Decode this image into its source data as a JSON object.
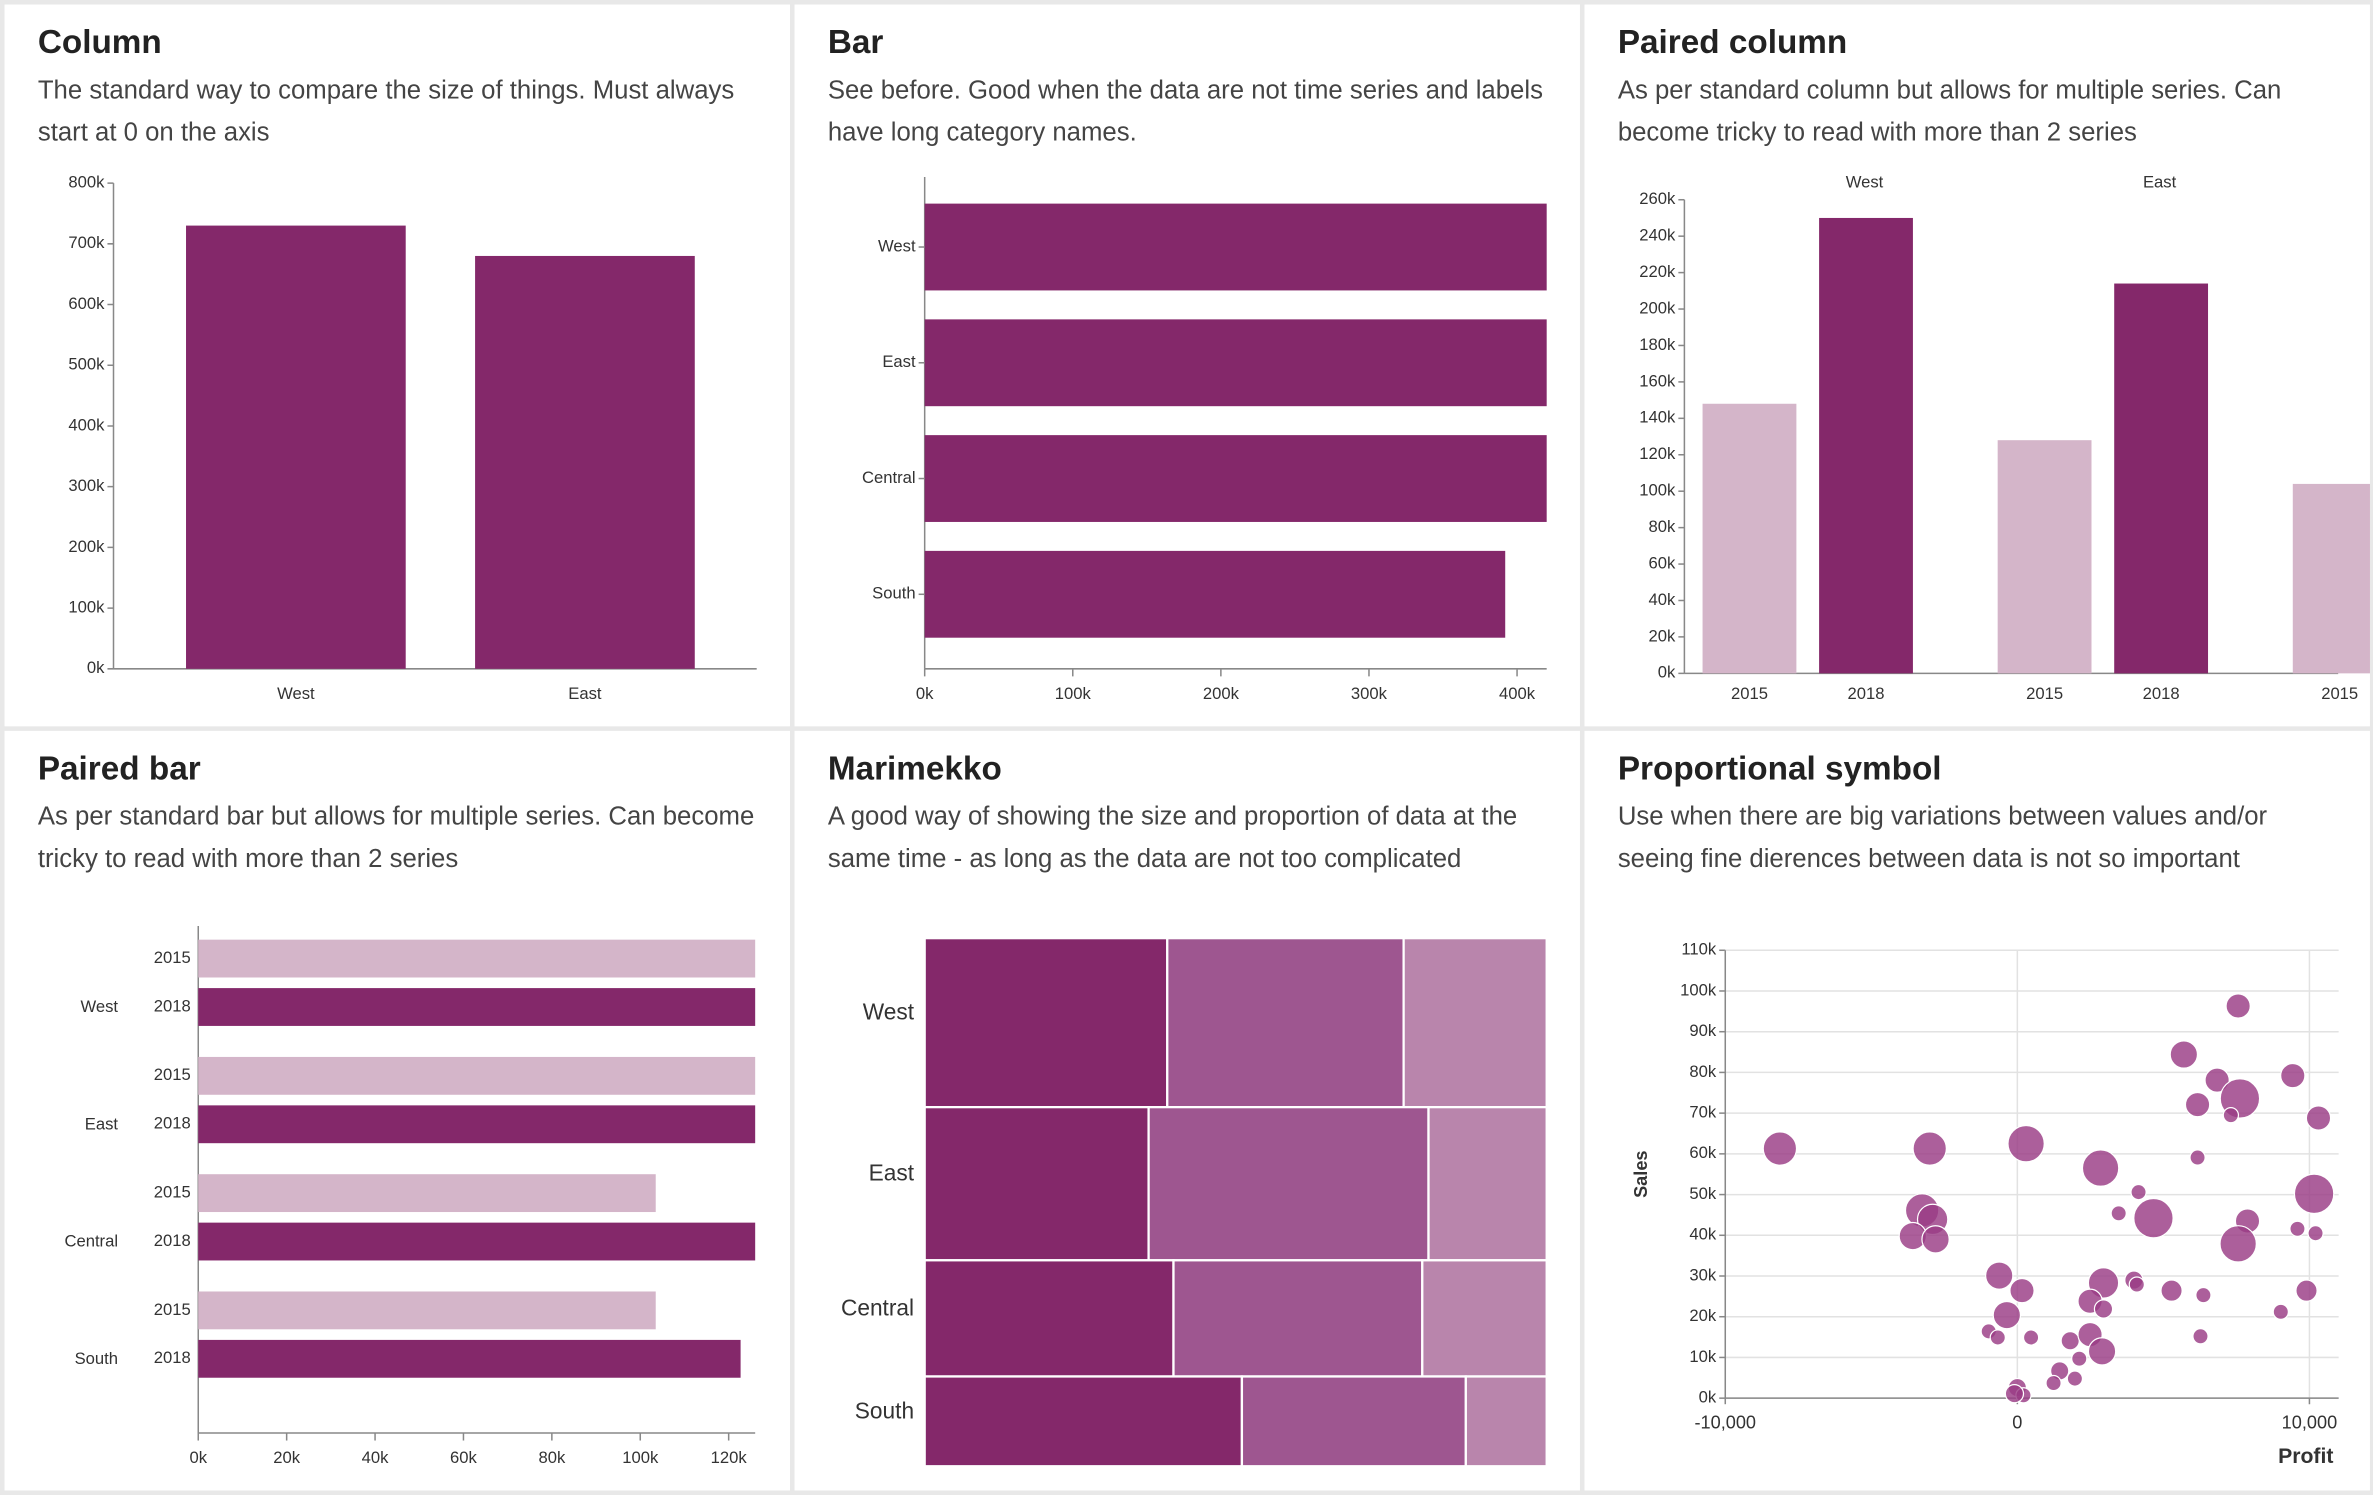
{
  "chart_data": [
    {
      "type": "bar",
      "title": "Column",
      "subtitle": "The standard way to compare the size of things. Must always start at 0 on the axis",
      "categories": [
        "West",
        "East"
      ],
      "values": [
        730000,
        680000
      ],
      "color": "#84286a",
      "ylim": [
        0,
        800000
      ],
      "yticks": [
        {
          "value": 0,
          "label": "0k"
        },
        {
          "value": 100000,
          "label": "100k"
        },
        {
          "value": 200000,
          "label": "200k"
        },
        {
          "value": 300000,
          "label": "300k"
        },
        {
          "value": 400000,
          "label": "400k"
        },
        {
          "value": 500000,
          "label": "500k"
        },
        {
          "value": 600000,
          "label": "600k"
        },
        {
          "value": 700000,
          "label": "700k"
        },
        {
          "value": 800000,
          "label": "800k"
        }
      ]
    },
    {
      "type": "bar",
      "horizontal": true,
      "title": "Bar",
      "subtitle": "See before. Good when the data are not time series and labels have long category names.",
      "categories": [
        "West",
        "East",
        "Central",
        "South"
      ],
      "values": [
        420000,
        420000,
        420000,
        392000
      ],
      "color": "#84286a",
      "xlim": [
        0,
        420000
      ],
      "xticks": [
        {
          "value": 0,
          "label": "0k"
        },
        {
          "value": 100000,
          "label": "100k"
        },
        {
          "value": 200000,
          "label": "200k"
        },
        {
          "value": 300000,
          "label": "300k"
        },
        {
          "value": 400000,
          "label": "400k"
        }
      ]
    },
    {
      "type": "bar",
      "title": "Paired column",
      "subtitle": "As per standard column but allows for multiple series. Can become tricky to read with more than 2 series",
      "categories": [
        "West",
        "East",
        null
      ],
      "series": [
        {
          "name": "2015",
          "color": "#d4b5c9",
          "values": [
            148000,
            128000,
            104000
          ]
        },
        {
          "name": "2018",
          "color": "#84286a",
          "values": [
            250000,
            214000,
            null
          ]
        }
      ],
      "ylim": [
        0,
        260000
      ],
      "yticks": [
        {
          "value": 0,
          "label": "0k"
        },
        {
          "value": 20000,
          "label": "20k"
        },
        {
          "value": 40000,
          "label": "40k"
        },
        {
          "value": 60000,
          "label": "60k"
        },
        {
          "value": 80000,
          "label": "80k"
        },
        {
          "value": 100000,
          "label": "100k"
        },
        {
          "value": 120000,
          "label": "120k"
        },
        {
          "value": 140000,
          "label": "140k"
        },
        {
          "value": 160000,
          "label": "160k"
        },
        {
          "value": 180000,
          "label": "180k"
        },
        {
          "value": 200000,
          "label": "200k"
        },
        {
          "value": 220000,
          "label": "220k"
        },
        {
          "value": 240000,
          "label": "240k"
        },
        {
          "value": 260000,
          "label": "260k"
        }
      ]
    },
    {
      "type": "bar",
      "horizontal": true,
      "title": "Paired bar",
      "subtitle": "As per standard bar but allows for multiple series. Can become tricky to read with more than 2 series",
      "categories": [
        "West",
        "East",
        "Central",
        "South"
      ],
      "series": [
        {
          "name": "2015",
          "color": "#d4b5c9",
          "values": [
            126000,
            126000,
            103500,
            103500
          ]
        },
        {
          "name": "2018",
          "color": "#84286a",
          "values": [
            126000,
            126000,
            126000,
            122700
          ]
        }
      ],
      "xlim": [
        0,
        126000
      ],
      "xticks": [
        {
          "value": 0,
          "label": "0k"
        },
        {
          "value": 20000,
          "label": "20k"
        },
        {
          "value": 40000,
          "label": "40k"
        },
        {
          "value": 60000,
          "label": "60k"
        },
        {
          "value": 80000,
          "label": "80k"
        },
        {
          "value": 100000,
          "label": "100k"
        },
        {
          "value": 120000,
          "label": "120k"
        }
      ]
    },
    {
      "type": "marimekko",
      "title": "Marimekko",
      "subtitle": "A good way of showing the size and proportion of data at the same time - as long as the data are not too complicated",
      "categories": [
        "West",
        "East",
        "Central",
        "South"
      ],
      "weights": [
        32,
        29,
        22,
        17
      ],
      "series": [
        {
          "color": "#84286a",
          "values": [
            39,
            36,
            40,
            51
          ]
        },
        {
          "color": "#9e5690",
          "values": [
            38,
            45,
            40,
            36
          ]
        },
        {
          "color": "#b985ac",
          "values": [
            23,
            19,
            20,
            13
          ]
        }
      ]
    },
    {
      "type": "scatter",
      "title": "Proportional symbol",
      "subtitle": "Use when there are big variations between values and/or seeing fine dierences between data is not so important",
      "x_label": "Profit",
      "y_label": "Sales",
      "color": "#9a3c85",
      "x": [
        -8130,
        -3000,
        300,
        2850,
        7560,
        5700,
        6840,
        6170,
        7620,
        9430,
        10310,
        7310,
        6170,
        10160,
        -3260,
        -2900,
        -3580,
        -2800,
        4150,
        3470,
        4660,
        7880,
        7560,
        9590,
        10210,
        -620,
        160,
        2950,
        3990,
        4090,
        5280,
        6370,
        9900,
        2490,
        2950,
        -360,
        -980,
        -670,
        470,
        1810,
        2490,
        2900,
        2120,
        1450,
        1970,
        1240,
        0,
        210,
        -100,
        6270,
        9020
      ],
      "y": [
        61300,
        61300,
        62500,
        56500,
        96300,
        84400,
        78100,
        72100,
        73600,
        79200,
        68800,
        69500,
        59100,
        50200,
        46100,
        43900,
        39800,
        39000,
        50600,
        45400,
        44200,
        43500,
        37900,
        41600,
        40500,
        30100,
        26400,
        28300,
        29000,
        27900,
        26400,
        25300,
        26400,
        23800,
        21900,
        20400,
        16400,
        14900,
        14900,
        14100,
        15600,
        11500,
        9700,
        6700,
        4800,
        3700,
        2600,
        700,
        1100,
        15200,
        21200
      ],
      "sizes": [
        121,
        121,
        144,
        144,
        64,
        81,
        64,
        64,
        169,
        64,
        64,
        25,
        25,
        169,
        121,
        100,
        81,
        81,
        25,
        25,
        169,
        64,
        144,
        25,
        25,
        81,
        64,
        100,
        36,
        25,
        49,
        25,
        49,
        64,
        36,
        81,
        25,
        25,
        25,
        36,
        64,
        81,
        25,
        36,
        25,
        25,
        36,
        25,
        36,
        25,
        25
      ],
      "xlim": [
        -10000,
        11000
      ],
      "xticks": [
        {
          "value": -10000,
          "label": "-10,000"
        },
        0,
        {
          "value": 10000,
          "label": "10,000"
        }
      ],
      "ylim": [
        0,
        110000
      ],
      "yticks": [
        {
          "value": 0,
          "label": "0k"
        },
        {
          "value": 10000,
          "label": "10k"
        },
        {
          "value": 20000,
          "label": "20k"
        },
        {
          "value": 30000,
          "label": "30k"
        },
        {
          "value": 40000,
          "label": "40k"
        },
        {
          "value": 50000,
          "label": "50k"
        },
        {
          "value": 60000,
          "label": "60k"
        },
        {
          "value": 70000,
          "label": "70k"
        },
        {
          "value": 80000,
          "label": "80k"
        },
        {
          "value": 90000,
          "label": "90k"
        },
        {
          "value": 100000,
          "label": "100k"
        },
        {
          "value": 110000,
          "label": "110k"
        }
      ],
      "grid": true
    }
  ]
}
